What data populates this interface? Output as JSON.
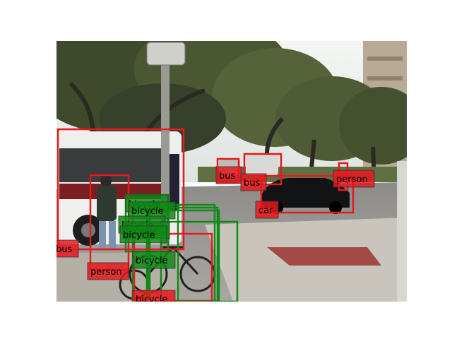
{
  "detections": [
    {
      "label": "bus",
      "color": "red"
    },
    {
      "label": "person",
      "color": "red"
    },
    {
      "label": "bus",
      "color": "red"
    },
    {
      "label": "bus",
      "color": "red"
    },
    {
      "label": "person",
      "color": "red"
    },
    {
      "label": "car",
      "color": "red"
    },
    {
      "label": "bicycle",
      "color": "red"
    },
    {
      "label": "bicycle",
      "color": "green"
    },
    {
      "label": "bicycle",
      "color": "green"
    },
    {
      "label": "bicycle",
      "color": "green"
    },
    {
      "label": "bicycle",
      "color": "green"
    },
    {
      "label": "bicycle",
      "color": "green"
    },
    {
      "label": "bicycle",
      "color": "green"
    }
  ],
  "colors": {
    "red": "#e6191f",
    "green": "#0f8a16"
  }
}
